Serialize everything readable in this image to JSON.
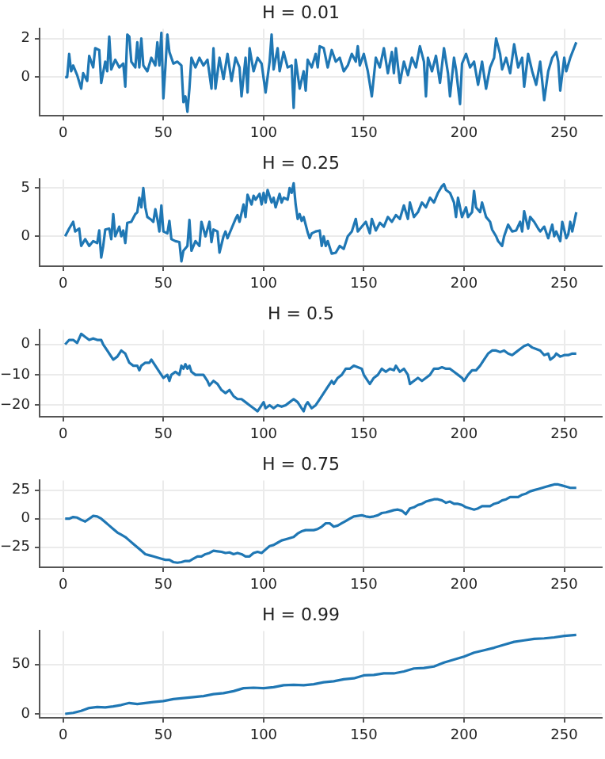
{
  "chart_data": [
    {
      "type": "line",
      "title": "H = 0.01",
      "color": "#1f77b4",
      "grid": true,
      "xlim": [
        -11.75,
        268.75
      ],
      "xticks": [
        0,
        50,
        100,
        150,
        200,
        250
      ],
      "ylim": [
        -2.0,
        2.5
      ],
      "yticks": [
        0,
        2
      ],
      "x": [
        1,
        2,
        3,
        4,
        5,
        7,
        9,
        10,
        12,
        13,
        15,
        16,
        18,
        19,
        21,
        22,
        23,
        24,
        26,
        28,
        30,
        31,
        32,
        33,
        34,
        36,
        37,
        38,
        39,
        40,
        42,
        44,
        46,
        47,
        48,
        49,
        50,
        51,
        52,
        53,
        55,
        57,
        59,
        60,
        61,
        62,
        63,
        64,
        66,
        68,
        70,
        72,
        74,
        75,
        76,
        78,
        80,
        82,
        84,
        86,
        88,
        89,
        91,
        92,
        93,
        95,
        97,
        99,
        101,
        103,
        104,
        105,
        107,
        108,
        110,
        112,
        114,
        115,
        116,
        118,
        120,
        121,
        122,
        124,
        126,
        127,
        128,
        130,
        132,
        134,
        136,
        138,
        140,
        142,
        144,
        146,
        147,
        148,
        150,
        152,
        154,
        156,
        158,
        160,
        162,
        164,
        165,
        166,
        168,
        170,
        172,
        174,
        176,
        178,
        180,
        181,
        182,
        184,
        186,
        188,
        190,
        192,
        193,
        195,
        196,
        198,
        199,
        201,
        203,
        205,
        207,
        209,
        211,
        213,
        215,
        216,
        218,
        219,
        221,
        223,
        225,
        227,
        229,
        230,
        232,
        234,
        236,
        238,
        240,
        242,
        244,
        246,
        247,
        248,
        250,
        251,
        253,
        256
      ],
      "values": [
        0,
        0,
        1.2,
        0.3,
        0.6,
        0.1,
        -0.6,
        0.2,
        -0.2,
        1.1,
        0.5,
        1.5,
        1.4,
        -0.3,
        0.8,
        0.3,
        2.1,
        0.4,
        0.9,
        0.5,
        0.7,
        -0.5,
        2.2,
        2.1,
        0.8,
        0.5,
        1.8,
        0.5,
        2.0,
        0.6,
        0.3,
        1.0,
        0.6,
        1.8,
        0.6,
        2.3,
        -1.1,
        0.5,
        2.2,
        1.3,
        0.7,
        0.8,
        0.6,
        -1.3,
        -1.0,
        -1.8,
        -0.6,
        1.0,
        0.5,
        1.0,
        0.6,
        0.9,
        -0.6,
        1.5,
        -0.6,
        1.0,
        -0.1,
        1.2,
        -0.2,
        1.0,
        0.5,
        -1.0,
        1.0,
        -0.8,
        1.5,
        0.3,
        1.0,
        0.7,
        -0.8,
        0.8,
        2.2,
        0.4,
        1.5,
        0.3,
        1.3,
        0.5,
        0.6,
        -1.6,
        0.9,
        -0.6,
        0.3,
        -0.7,
        0.9,
        0.5,
        1.2,
        0.5,
        1.6,
        1.5,
        0.5,
        1.4,
        0.8,
        1.0,
        0.3,
        0.6,
        1.2,
        0.8,
        1.6,
        0.6,
        1.2,
        0.3,
        -1.0,
        1.0,
        0.5,
        1.5,
        0.2,
        1.3,
        0.2,
        1.5,
        -0.3,
        0.8,
        0.1,
        1.0,
        0.5,
        1.6,
        0.8,
        -1.0,
        1.0,
        0.3,
        1.1,
        -0.3,
        1.5,
        0.2,
        -1.0,
        1.0,
        0.4,
        -1.4,
        0.7,
        1.2,
        0.5,
        0.8,
        -0.4,
        0.8,
        -0.6,
        0.5,
        1.0,
        2.0,
        1.2,
        0.4,
        1.0,
        0.2,
        1.7,
        0.5,
        1.0,
        -0.5,
        1.2,
        0.3,
        -0.4,
        0.8,
        -1.2,
        0.3,
        1.0,
        1.3,
        0.8,
        -0.7,
        1.0,
        0.3,
        1.0,
        1.8
      ]
    },
    {
      "type": "line",
      "title": "H = 0.25",
      "color": "#1f77b4",
      "grid": true,
      "xlim": [
        -11.75,
        268.75
      ],
      "xticks": [
        0,
        50,
        100,
        150,
        200,
        250
      ],
      "ylim": [
        -3.1,
        5.9
      ],
      "yticks": [
        0,
        5
      ],
      "x": [
        1,
        3,
        5,
        6,
        8,
        9,
        11,
        13,
        15,
        17,
        18,
        19,
        20,
        21,
        23,
        24,
        25,
        26,
        28,
        29,
        30,
        31,
        32,
        34,
        36,
        37,
        38,
        39,
        40,
        41,
        42,
        44,
        45,
        46,
        47,
        48,
        49,
        50,
        52,
        53,
        54,
        56,
        58,
        59,
        60,
        62,
        63,
        64,
        66,
        68,
        69,
        71,
        73,
        74,
        75,
        77,
        78,
        80,
        81,
        82,
        84,
        86,
        87,
        88,
        90,
        91,
        92,
        94,
        95,
        96,
        98,
        99,
        100,
        101,
        102,
        104,
        105,
        106,
        108,
        109,
        110,
        112,
        113,
        114,
        115,
        116,
        117,
        118,
        119,
        120,
        121,
        122,
        123,
        124,
        126,
        128,
        129,
        130,
        131,
        132,
        134,
        136,
        138,
        140,
        142,
        144,
        146,
        147,
        149,
        151,
        153,
        154,
        156,
        158,
        160,
        162,
        164,
        166,
        168,
        170,
        172,
        173,
        175,
        177,
        179,
        181,
        183,
        185,
        187,
        189,
        190,
        191,
        193,
        195,
        196,
        197,
        199,
        201,
        202,
        204,
        205,
        206,
        208,
        209,
        211,
        213,
        214,
        216,
        217,
        219,
        220,
        222,
        224,
        226,
        228,
        229,
        230,
        232,
        233,
        235,
        237,
        238,
        240,
        242,
        244,
        245,
        246,
        248,
        249,
        251,
        252,
        253,
        254,
        256
      ],
      "values": [
        0,
        0.8,
        1.5,
        0.5,
        0.8,
        -1,
        -0.3,
        -1,
        -0.5,
        -0.7,
        0.6,
        -2.2,
        -1,
        0.7,
        0.8,
        -0.3,
        2.3,
        0,
        1,
        0,
        0.6,
        -0.7,
        1.4,
        1.5,
        2.3,
        2.5,
        4,
        3,
        5.0,
        3,
        2.0,
        1.7,
        1.5,
        2.8,
        1.8,
        0.5,
        3.2,
        0.5,
        0.3,
        1.6,
        -0.3,
        -0.5,
        -0.6,
        -2.6,
        -1.5,
        -1,
        1.7,
        -1.5,
        -0.5,
        -1,
        1.5,
        0,
        1.5,
        -0.6,
        0.7,
        0.5,
        -1.7,
        0,
        0.5,
        -0.2,
        0.8,
        1.8,
        2.2,
        1.5,
        3.3,
        2.0,
        4.3,
        3.3,
        4.2,
        3.8,
        4.4,
        3.3,
        4.5,
        3.5,
        4.8,
        3.5,
        4.0,
        3.0,
        4.4,
        3.5,
        4.0,
        3.8,
        5.0,
        4.5,
        5.5,
        3.3,
        1.8,
        2.3,
        1.6,
        2.0,
        1.2,
        0.4,
        -0.2,
        0.3,
        0.5,
        0.6,
        -1,
        0,
        -1,
        -0.5,
        -1.8,
        -1.7,
        -1.0,
        -1.3,
        0,
        0.5,
        1.8,
        0.5,
        1.0,
        1.5,
        0.3,
        1.8,
        0.6,
        1.4,
        1,
        2.0,
        1.5,
        2.2,
        1.8,
        3.2,
        1.8,
        3.5,
        2.0,
        2.5,
        3.5,
        3.0,
        4.0,
        3.5,
        4.5,
        5.2,
        5.4,
        4.8,
        4.5,
        3.5,
        2.0,
        4.0,
        2.0,
        3.0,
        2.0,
        2.5,
        4.7,
        3.0,
        2.5,
        3.5,
        2.0,
        1.5,
        0.7,
        0,
        -0.5,
        -1.0,
        0,
        1.2,
        0.5,
        0.6,
        1.5,
        0.5,
        2.6,
        0.8,
        2.0,
        1.5,
        0.8,
        0.5,
        1.0,
        -0.2,
        1.2,
        0.0,
        0.5,
        -0.5,
        1.5,
        -0.2,
        0.2,
        1.5,
        0.5,
        2.5
      ]
    },
    {
      "type": "line",
      "title": "H = 0.5",
      "color": "#1f77b4",
      "grid": true,
      "xlim": [
        -11.75,
        268.75
      ],
      "xticks": [
        0,
        50,
        100,
        150,
        200,
        250
      ],
      "ylim": [
        -23.8,
        4.8
      ],
      "yticks": [
        -20,
        -10,
        0
      ],
      "x": [
        1,
        3,
        5,
        7,
        9,
        11,
        13,
        15,
        17,
        19,
        20,
        22,
        24,
        25,
        27,
        28,
        29,
        31,
        33,
        35,
        37,
        38,
        39,
        41,
        43,
        44,
        46,
        48,
        50,
        52,
        53,
        54,
        56,
        58,
        59,
        60,
        61,
        62,
        63,
        64,
        66,
        68,
        70,
        72,
        73,
        75,
        77,
        79,
        81,
        83,
        85,
        87,
        89,
        91,
        93,
        95,
        97,
        98,
        100,
        101,
        103,
        105,
        107,
        109,
        111,
        113,
        115,
        117,
        119,
        120,
        121,
        122,
        124,
        126,
        128,
        130,
        132,
        134,
        135,
        137,
        139,
        141,
        143,
        145,
        147,
        149,
        150,
        152,
        153,
        155,
        157,
        159,
        161,
        163,
        165,
        166,
        168,
        170,
        172,
        173,
        175,
        177,
        179,
        181,
        183,
        185,
        187,
        189,
        191,
        193,
        195,
        197,
        199,
        200,
        202,
        204,
        206,
        208,
        210,
        212,
        214,
        216,
        218,
        220,
        222,
        224,
        226,
        228,
        230,
        232,
        234,
        236,
        238,
        240,
        242,
        243,
        245,
        246,
        248,
        250,
        252,
        254,
        256
      ],
      "values": [
        0,
        1.5,
        1.5,
        0.5,
        3.5,
        2.5,
        1.5,
        2,
        1.5,
        1.5,
        0,
        -2,
        -4,
        -5,
        -4,
        -3,
        -2,
        -3,
        -6,
        -7,
        -7,
        -8.5,
        -7,
        -6,
        -6,
        -5,
        -7,
        -9,
        -11,
        -10,
        -12,
        -10,
        -9,
        -10,
        -7,
        -8,
        -6.5,
        -8,
        -7,
        -9,
        -10,
        -10,
        -10,
        -12,
        -13.5,
        -12,
        -13,
        -15,
        -16,
        -15,
        -17,
        -18,
        -18,
        -19,
        -20,
        -21,
        -22,
        -21,
        -19,
        -21,
        -20,
        -21,
        -20,
        -20.5,
        -20,
        -19,
        -18,
        -19,
        -21,
        -22,
        -20,
        -19,
        -21,
        -20,
        -18,
        -16,
        -14,
        -12,
        -13,
        -11,
        -10,
        -8,
        -8,
        -7,
        -7.5,
        -8,
        -10,
        -12,
        -13,
        -11,
        -10,
        -8,
        -9,
        -8,
        -8.5,
        -7,
        -9,
        -8,
        -10,
        -13,
        -12,
        -11,
        -12,
        -11,
        -10,
        -8,
        -8,
        -7.5,
        -8,
        -8,
        -9,
        -10,
        -11,
        -12,
        -10,
        -8.5,
        -8.5,
        -7,
        -5,
        -3,
        -2,
        -2,
        -2.5,
        -2,
        -3,
        -3.5,
        -2.5,
        -1.5,
        -0.5,
        0,
        -1,
        -1.5,
        -2,
        -3.5,
        -3,
        -5,
        -4,
        -3,
        -4,
        -3.5,
        -3.5,
        -3,
        -3
      ]
    },
    {
      "type": "line",
      "title": "H = 0.75",
      "color": "#1f77b4",
      "grid": true,
      "xlim": [
        -11.75,
        268.75
      ],
      "xticks": [
        0,
        50,
        100,
        150,
        200,
        250
      ],
      "ylim": [
        -42.5,
        33.5
      ],
      "yticks": [
        -25,
        0,
        25
      ],
      "x": [
        1,
        3,
        5,
        7,
        9,
        11,
        13,
        15,
        17,
        19,
        21,
        23,
        25,
        27,
        29,
        31,
        33,
        35,
        37,
        39,
        41,
        43,
        45,
        47,
        49,
        51,
        53,
        55,
        57,
        59,
        61,
        63,
        65,
        67,
        69,
        71,
        73,
        75,
        77,
        79,
        81,
        83,
        85,
        87,
        89,
        91,
        93,
        95,
        97,
        99,
        101,
        103,
        105,
        107,
        109,
        111,
        113,
        115,
        117,
        119,
        121,
        123,
        125,
        127,
        129,
        131,
        133,
        135,
        137,
        139,
        141,
        143,
        145,
        147,
        149,
        151,
        153,
        155,
        157,
        159,
        161,
        163,
        165,
        167,
        169,
        171,
        173,
        175,
        177,
        179,
        181,
        183,
        185,
        187,
        189,
        191,
        193,
        195,
        197,
        199,
        201,
        203,
        205,
        207,
        209,
        211,
        213,
        215,
        217,
        219,
        221,
        223,
        225,
        227,
        229,
        231,
        233,
        235,
        237,
        239,
        241,
        243,
        245,
        247,
        249,
        251,
        253,
        256
      ],
      "values": [
        0,
        0,
        1.5,
        1,
        -1,
        -2.5,
        0,
        2.5,
        2,
        0,
        -3,
        -6,
        -9,
        -12,
        -14,
        -16,
        -19,
        -22,
        -25,
        -28,
        -31,
        -32,
        -33,
        -34,
        -35,
        -36,
        -36,
        -38,
        -38.5,
        -38,
        -37,
        -37,
        -35,
        -33,
        -33,
        -31,
        -30,
        -28,
        -28.5,
        -29,
        -30,
        -29.5,
        -31,
        -30,
        -31,
        -33,
        -33,
        -30,
        -29,
        -30,
        -27,
        -24,
        -23,
        -21,
        -19,
        -18,
        -17,
        -16,
        -13,
        -11,
        -10,
        -10,
        -10,
        -9,
        -7,
        -4,
        -4,
        -7,
        -6,
        -4,
        -2,
        0,
        2,
        2.5,
        3,
        2,
        1.5,
        2,
        3,
        5,
        5.5,
        6.5,
        7.5,
        8,
        7,
        4,
        9,
        10,
        12,
        13,
        15,
        16,
        17,
        17,
        16,
        14,
        15,
        13,
        13,
        12,
        10,
        9,
        8,
        9,
        11,
        11,
        11,
        13,
        14,
        16,
        17,
        19,
        19,
        19,
        21,
        22,
        24,
        25,
        26,
        27,
        28,
        29,
        30,
        30,
        29,
        28,
        27,
        27
      ]
    },
    {
      "type": "line",
      "title": "H = 0.99",
      "color": "#1f77b4",
      "grid": true,
      "xlim": [
        -11.75,
        268.75
      ],
      "xticks": [
        0,
        50,
        100,
        150,
        200,
        250
      ],
      "ylim": [
        -4,
        84
      ],
      "yticks": [
        0,
        50
      ],
      "x": [
        1,
        5,
        9,
        13,
        17,
        21,
        25,
        29,
        33,
        37,
        41,
        45,
        50,
        55,
        60,
        65,
        70,
        75,
        80,
        85,
        90,
        95,
        100,
        105,
        110,
        115,
        120,
        125,
        130,
        135,
        140,
        145,
        150,
        155,
        160,
        165,
        170,
        175,
        180,
        185,
        190,
        195,
        200,
        205,
        210,
        215,
        220,
        225,
        230,
        235,
        240,
        245,
        250,
        256
      ],
      "values": [
        0,
        1,
        3,
        6,
        7,
        6.5,
        7.5,
        9,
        11,
        10,
        11,
        12,
        13,
        15,
        16,
        17,
        18,
        20,
        21,
        23,
        26,
        26.5,
        26,
        27,
        29,
        29.5,
        29,
        30,
        32,
        33,
        35,
        36,
        39,
        39.5,
        41,
        41,
        43,
        46,
        46.5,
        48,
        52,
        55,
        58,
        62,
        64.5,
        67,
        70,
        73,
        74.5,
        76,
        76.5,
        77.5,
        79,
        80
      ]
    }
  ]
}
